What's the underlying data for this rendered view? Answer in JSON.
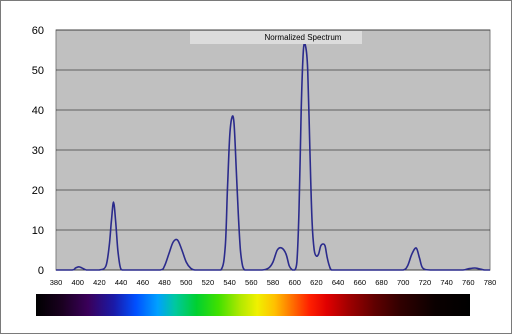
{
  "chart_data": {
    "type": "line",
    "title": "Normalized Spectrum",
    "xlabel": "",
    "ylabel": "",
    "xlim": [
      380,
      780
    ],
    "ylim": [
      0,
      60
    ],
    "grid": "horizontal",
    "background": "#c0c0c0",
    "line_color": "#2b2b8c",
    "x_ticks": [
      380,
      400,
      420,
      440,
      460,
      480,
      500,
      520,
      540,
      560,
      580,
      600,
      620,
      640,
      660,
      680,
      700,
      720,
      740,
      760,
      780
    ],
    "y_ticks": [
      0,
      10,
      20,
      30,
      40,
      50,
      60
    ],
    "series": [
      {
        "name": "",
        "x": [
          380,
          395,
          398,
          401,
          404,
          408,
          412,
          420,
          426,
          429,
          431,
          433,
          435,
          437,
          439,
          441,
          446,
          460,
          476,
          480,
          484,
          488,
          492,
          496,
          500,
          504,
          508,
          520,
          532,
          536,
          538,
          540,
          542,
          544,
          546,
          548,
          550,
          552,
          554,
          556,
          570,
          576,
          580,
          584,
          588,
          592,
          595,
          598,
          600,
          602,
          604,
          606,
          608,
          610,
          612,
          614,
          616,
          618,
          620,
          622,
          624,
          626,
          628,
          630,
          632,
          634,
          640,
          660,
          690,
          700,
          704,
          708,
          712,
          715,
          718,
          725,
          740,
          755,
          760,
          766,
          770,
          775,
          780
        ],
        "y": [
          0,
          0,
          0.5,
          0.8,
          0.5,
          0,
          0,
          0,
          1,
          6,
          12,
          17,
          12,
          5,
          1,
          0,
          0,
          0,
          0,
          1,
          4,
          7,
          7.5,
          5,
          2,
          0.5,
          0,
          0,
          0,
          6,
          20,
          33,
          38,
          37,
          26,
          14,
          5,
          1,
          0,
          0,
          0,
          0.5,
          2,
          5,
          5.5,
          4,
          1,
          0,
          0,
          2,
          15,
          40,
          55,
          56,
          50,
          30,
          12,
          5,
          3.5,
          4,
          6,
          6.5,
          6,
          3,
          1,
          0,
          0,
          0,
          0,
          0,
          1,
          4,
          5.5,
          3,
          0.5,
          0,
          0,
          0,
          0.3,
          0.5,
          0.3,
          0,
          0
        ]
      }
    ],
    "colorbar": "visible spectrum"
  }
}
